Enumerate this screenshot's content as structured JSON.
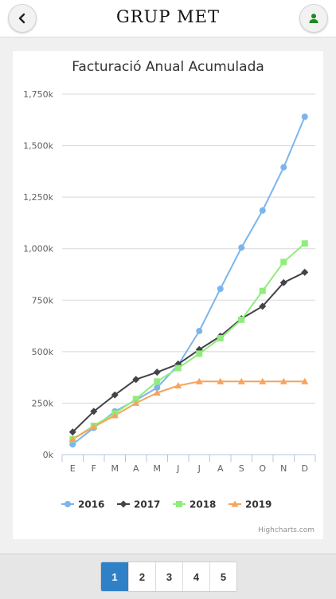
{
  "header": {
    "brand": "GRUP MET",
    "back_icon": "chevron-left-icon",
    "user_icon": "user-icon",
    "user_icon_color": "#1e8a1e"
  },
  "chart_data": {
    "type": "line",
    "title": "Facturació Anual Acumulada",
    "categories": [
      "E",
      "F",
      "M",
      "A",
      "M",
      "J",
      "J",
      "A",
      "S",
      "O",
      "N",
      "D"
    ],
    "ylim": [
      0,
      1750000
    ],
    "ytick_values": [
      0,
      250000,
      500000,
      750000,
      1000000,
      1250000,
      1500000,
      1750000
    ],
    "ytick_labels": [
      "0k",
      "250k",
      "500k",
      "750k",
      "1,000k",
      "1,250k",
      "1,500k",
      "1,750k"
    ],
    "grid": true,
    "legend_placement": "bottom",
    "series": [
      {
        "name": "2016",
        "color": "#7cb5ec",
        "marker": "circle",
        "values": [
          50000,
          130000,
          210000,
          265000,
          325000,
          435000,
          600000,
          805000,
          1005000,
          1185000,
          1395000,
          1640000
        ]
      },
      {
        "name": "2017",
        "color": "#434348",
        "marker": "diamond",
        "values": [
          110000,
          210000,
          290000,
          365000,
          400000,
          440000,
          510000,
          575000,
          660000,
          720000,
          835000,
          885000
        ]
      },
      {
        "name": "2018",
        "color": "#90ed7d",
        "marker": "square",
        "values": [
          75000,
          140000,
          200000,
          270000,
          355000,
          420000,
          490000,
          565000,
          655000,
          795000,
          935000,
          1025000
        ]
      },
      {
        "name": "2019",
        "color": "#f7a35c",
        "marker": "triangle",
        "values": [
          75000,
          135000,
          190000,
          250000,
          300000,
          335000,
          355000,
          355000,
          355000,
          355000,
          355000,
          355000
        ]
      }
    ]
  },
  "credit": "Highcharts.com",
  "pagination": {
    "active": 0,
    "pages": [
      "1",
      "2",
      "3",
      "4",
      "5"
    ]
  }
}
